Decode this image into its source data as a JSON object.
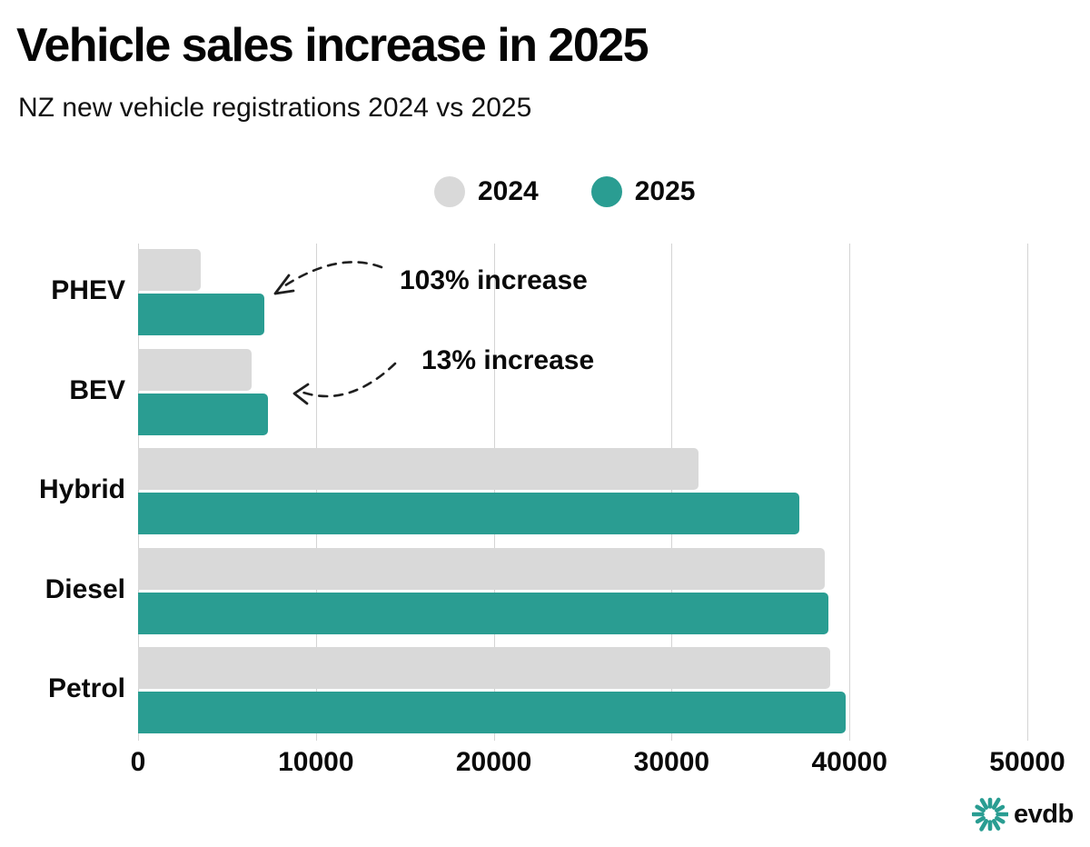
{
  "title": "Vehicle sales increase in 2025",
  "subtitle": "NZ new vehicle registrations 2024 vs 2025",
  "colors": {
    "series_2024": "#d9d9d9",
    "series_2025": "#2a9d92",
    "gridline": "#d4d4d4",
    "text": "#0a0a0a"
  },
  "legend": {
    "position": "top-center",
    "items": [
      {
        "label": "2024",
        "color": "#d9d9d9"
      },
      {
        "label": "2025",
        "color": "#2a9d92"
      }
    ]
  },
  "annotations": [
    {
      "text": "103% increase",
      "target": "PHEV 2025 bar"
    },
    {
      "text": "13% increase",
      "target": "BEV 2025 bar"
    }
  ],
  "logo": {
    "text": "evdb",
    "icon": "teal-starburst-icon"
  },
  "chart_data": {
    "type": "bar",
    "orientation": "horizontal",
    "categories": [
      "PHEV",
      "BEV",
      "Hybrid",
      "Diesel",
      "Petrol"
    ],
    "series": [
      {
        "name": "2024",
        "color": "#d9d9d9",
        "values": [
          3500,
          6400,
          31500,
          38600,
          38900
        ]
      },
      {
        "name": "2025",
        "color": "#2a9d92",
        "values": [
          7100,
          7300,
          37200,
          38800,
          39800
        ]
      }
    ],
    "xlabel": "",
    "ylabel": "",
    "xlim": [
      0,
      50000
    ],
    "xticks": [
      0,
      10000,
      20000,
      30000,
      40000,
      50000
    ],
    "grid": "vertical"
  }
}
